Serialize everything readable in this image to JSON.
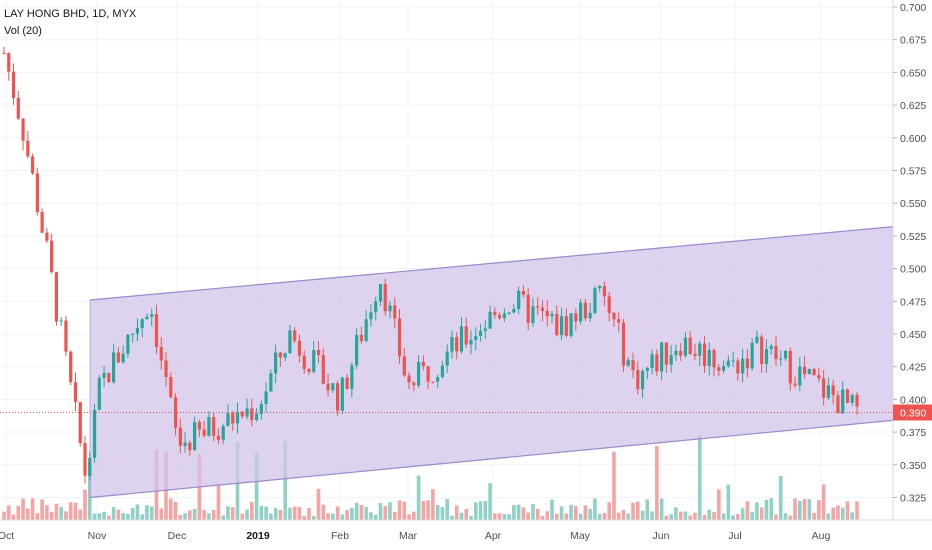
{
  "legend": {
    "symbol": "LAY HONG BHD, 1D, MYX",
    "volume": "Vol (20)"
  },
  "colors": {
    "up": "#26a69a",
    "down": "#ef5350",
    "volume_up": "#8fd1c7",
    "volume_down": "#f4a4a2",
    "channel_fill": "#d1c4e9",
    "channel_line": "#9c87d0",
    "price_line": "#ef5350"
  },
  "chart_data": {
    "type": "candlestick",
    "symbol": "LAY HONG BHD",
    "interval": "1D",
    "exchange": "MYX",
    "ylim": [
      0.3,
      0.7
    ],
    "y_ticks": [
      "0.700",
      "0.675",
      "0.650",
      "0.625",
      "0.600",
      "0.575",
      "0.550",
      "0.525",
      "0.500",
      "0.475",
      "0.450",
      "0.425",
      "0.400",
      "0.375",
      "0.350",
      "0.325"
    ],
    "x_labels": [
      {
        "label": "Oct",
        "bold": false
      },
      {
        "label": "Nov",
        "bold": false
      },
      {
        "label": "Dec",
        "bold": false
      },
      {
        "label": "2019",
        "bold": true
      },
      {
        "label": "Feb",
        "bold": false
      },
      {
        "label": "Mar",
        "bold": false
      },
      {
        "label": "Apr",
        "bold": false
      },
      {
        "label": "May",
        "bold": false
      },
      {
        "label": "Jun",
        "bold": false
      },
      {
        "label": "Jul",
        "bold": false
      },
      {
        "label": "Aug",
        "bold": false
      }
    ],
    "last_price": "0.390",
    "channel": {
      "upper": [
        [
          0.476,
          0.532
        ]
      ],
      "lower": [
        [
          0.325,
          0.384
        ]
      ]
    },
    "key_prices": [
      {
        "period": "Oct",
        "price": 0.665
      },
      {
        "period": "early Oct",
        "price": 0.61
      },
      {
        "period": "mid Oct",
        "price": 0.52
      },
      {
        "period": "late Oct",
        "price": 0.34
      },
      {
        "period": "Nov",
        "price": 0.41
      },
      {
        "period": "late Nov",
        "price": 0.475
      },
      {
        "period": "Dec",
        "price": 0.365
      },
      {
        "period": "2019",
        "price": 0.395
      },
      {
        "period": "Jan",
        "price": 0.45
      },
      {
        "period": "Feb",
        "price": 0.4
      },
      {
        "period": "Feb",
        "price": 0.495
      },
      {
        "period": "Mar",
        "price": 0.41
      },
      {
        "period": "Apr",
        "price": 0.475
      },
      {
        "period": "May",
        "price": 0.455
      },
      {
        "period": "May",
        "price": 0.48
      },
      {
        "period": "Jun",
        "price": 0.415
      },
      {
        "period": "Jun",
        "price": 0.445
      },
      {
        "period": "Jul",
        "price": 0.425
      },
      {
        "period": "Jul",
        "price": 0.44
      },
      {
        "period": "Aug",
        "price": 0.39
      }
    ]
  }
}
